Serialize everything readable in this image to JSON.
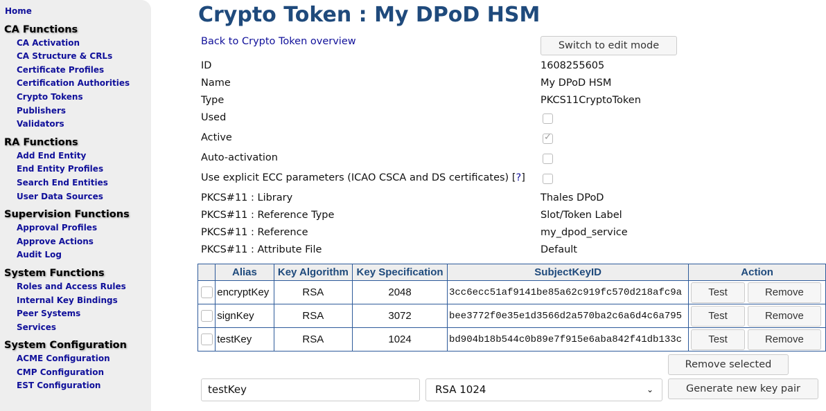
{
  "sidebar": {
    "home": "Home",
    "groups": [
      {
        "title": "CA Functions",
        "items": [
          "CA Activation",
          "CA Structure & CRLs",
          "Certificate Profiles",
          "Certification Authorities",
          "Crypto Tokens",
          "Publishers",
          "Validators"
        ]
      },
      {
        "title": "RA Functions",
        "items": [
          "Add End Entity",
          "End Entity Profiles",
          "Search End Entities",
          "User Data Sources"
        ]
      },
      {
        "title": "Supervision Functions",
        "items": [
          "Approval Profiles",
          "Approve Actions",
          "Audit Log"
        ]
      },
      {
        "title": "System Functions",
        "items": [
          "Roles and Access Rules",
          "Internal Key Bindings",
          "Peer Systems",
          "Services"
        ]
      },
      {
        "title": "System Configuration",
        "items": [
          "ACME Configuration",
          "CMP Configuration",
          "EST Configuration"
        ]
      }
    ]
  },
  "title": "Crypto Token : My DPoD HSM",
  "back_link": "Back to Crypto Token overview",
  "edit_button": "Switch to edit mode",
  "fields": {
    "id_label": "ID",
    "id": "1608255605",
    "name_label": "Name",
    "name": "My DPoD HSM",
    "type_label": "Type",
    "type": "PKCS11CryptoToken",
    "used_label": "Used",
    "used": false,
    "active_label": "Active",
    "active": true,
    "auto_label": "Auto-activation",
    "auto": false,
    "ecc_label": "Use explicit ECC parameters (ICAO CSCA and DS certificates) [",
    "ecc_help": "?",
    "ecc_close": "]",
    "ecc": false,
    "lib_label": "PKCS#11 : Library",
    "lib": "Thales DPoD",
    "reftype_label": "PKCS#11 : Reference Type",
    "reftype": "Slot/Token Label",
    "ref_label": "PKCS#11 : Reference",
    "ref": "my_dpod_service",
    "attr_label": "PKCS#11 : Attribute File",
    "attr": "Default"
  },
  "table": {
    "headers": [
      "Alias",
      "Key Algorithm",
      "Key Specification",
      "SubjectKeyID",
      "Action"
    ],
    "rows": [
      [
        "encryptKey",
        "RSA",
        "2048",
        "3cc6ecc51af9141be85a62c919fc570d218afc9a"
      ],
      [
        "signKey",
        "RSA",
        "3072",
        "bee3772f0e35e1d3566d2a570ba2c6a6d4c6a795"
      ],
      [
        "testKey",
        "RSA",
        "1024",
        "bd904b18b544c0b89e7f915e6aba842f41db133c"
      ]
    ],
    "test_label": "Test",
    "remove_label": "Remove"
  },
  "remove_selected": "Remove selected",
  "new_alias": "testKey",
  "new_spec": "RSA 1024",
  "generate": "Generate new key pair"
}
